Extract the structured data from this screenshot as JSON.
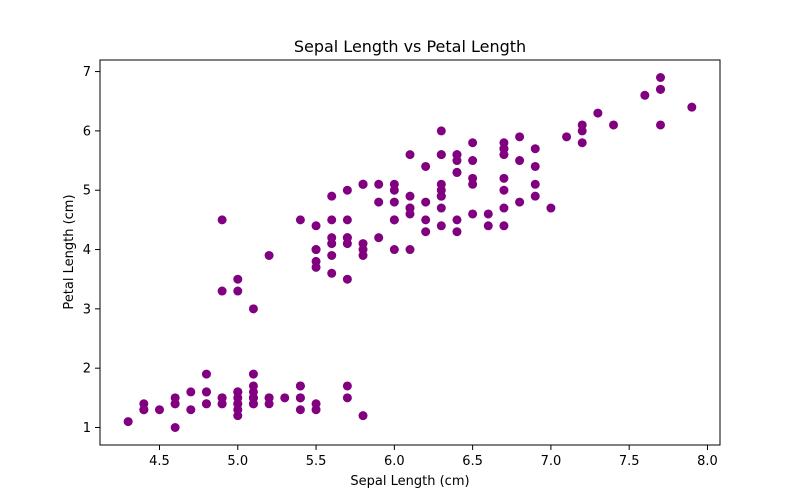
{
  "chart_data": {
    "type": "scatter",
    "title": "Sepal Length vs Petal Length",
    "xlabel": "Sepal Length (cm)",
    "ylabel": "Petal Length (cm)",
    "xlim": [
      4.12,
      8.08
    ],
    "ylim": [
      0.705,
      7.195
    ],
    "x_ticks": [
      4.5,
      5.0,
      5.5,
      6.0,
      6.5,
      7.0,
      7.5,
      8.0
    ],
    "x_tick_labels": [
      "4.5",
      "5.0",
      "5.5",
      "6.0",
      "6.5",
      "7.0",
      "7.5",
      "8.0"
    ],
    "y_ticks": [
      1,
      2,
      3,
      4,
      5,
      6,
      7
    ],
    "y_tick_labels": [
      "1",
      "2",
      "3",
      "4",
      "5",
      "6",
      "7"
    ],
    "grid": false,
    "marker_color": "#800080",
    "points": [
      [
        5.1,
        1.4
      ],
      [
        4.9,
        1.4
      ],
      [
        4.7,
        1.3
      ],
      [
        4.6,
        1.5
      ],
      [
        5.0,
        1.4
      ],
      [
        5.4,
        1.7
      ],
      [
        4.6,
        1.4
      ],
      [
        5.0,
        1.5
      ],
      [
        4.4,
        1.4
      ],
      [
        4.9,
        1.5
      ],
      [
        5.4,
        1.5
      ],
      [
        4.8,
        1.6
      ],
      [
        4.8,
        1.4
      ],
      [
        4.3,
        1.1
      ],
      [
        5.8,
        1.2
      ],
      [
        5.7,
        1.5
      ],
      [
        5.4,
        1.3
      ],
      [
        5.1,
        1.4
      ],
      [
        5.7,
        1.7
      ],
      [
        5.1,
        1.5
      ],
      [
        5.4,
        1.7
      ],
      [
        5.1,
        1.5
      ],
      [
        4.6,
        1.0
      ],
      [
        5.1,
        1.7
      ],
      [
        4.8,
        1.9
      ],
      [
        5.0,
        1.6
      ],
      [
        5.0,
        1.6
      ],
      [
        5.2,
        1.5
      ],
      [
        5.2,
        1.4
      ],
      [
        4.7,
        1.6
      ],
      [
        4.8,
        1.6
      ],
      [
        5.4,
        1.5
      ],
      [
        5.2,
        1.5
      ],
      [
        5.5,
        1.4
      ],
      [
        4.9,
        1.5
      ],
      [
        5.0,
        1.2
      ],
      [
        5.5,
        1.3
      ],
      [
        4.9,
        1.4
      ],
      [
        4.4,
        1.3
      ],
      [
        5.1,
        1.5
      ],
      [
        5.0,
        1.3
      ],
      [
        4.5,
        1.3
      ],
      [
        4.4,
        1.3
      ],
      [
        5.0,
        1.6
      ],
      [
        5.1,
        1.9
      ],
      [
        4.8,
        1.4
      ],
      [
        5.1,
        1.6
      ],
      [
        4.6,
        1.4
      ],
      [
        5.3,
        1.5
      ],
      [
        5.0,
        1.4
      ],
      [
        7.0,
        4.7
      ],
      [
        6.4,
        4.5
      ],
      [
        6.9,
        4.9
      ],
      [
        5.5,
        4.0
      ],
      [
        6.5,
        4.6
      ],
      [
        5.7,
        4.5
      ],
      [
        6.3,
        4.7
      ],
      [
        4.9,
        3.3
      ],
      [
        6.6,
        4.6
      ],
      [
        5.2,
        3.9
      ],
      [
        5.0,
        3.5
      ],
      [
        5.9,
        4.2
      ],
      [
        6.0,
        4.0
      ],
      [
        6.1,
        4.7
      ],
      [
        5.6,
        3.6
      ],
      [
        6.7,
        4.4
      ],
      [
        5.6,
        4.5
      ],
      [
        5.8,
        4.1
      ],
      [
        6.2,
        4.5
      ],
      [
        5.6,
        3.9
      ],
      [
        5.9,
        4.8
      ],
      [
        6.1,
        4.0
      ],
      [
        6.3,
        4.9
      ],
      [
        6.1,
        4.7
      ],
      [
        6.4,
        4.3
      ],
      [
        6.6,
        4.4
      ],
      [
        6.8,
        4.8
      ],
      [
        6.7,
        5.0
      ],
      [
        6.0,
        4.5
      ],
      [
        5.7,
        3.5
      ],
      [
        5.5,
        3.8
      ],
      [
        5.5,
        3.7
      ],
      [
        5.8,
        3.9
      ],
      [
        6.0,
        5.1
      ],
      [
        5.4,
        4.5
      ],
      [
        6.0,
        4.5
      ],
      [
        6.7,
        4.7
      ],
      [
        6.3,
        4.4
      ],
      [
        5.6,
        4.1
      ],
      [
        5.5,
        4.0
      ],
      [
        5.5,
        4.4
      ],
      [
        6.1,
        4.6
      ],
      [
        5.8,
        4.0
      ],
      [
        5.0,
        3.3
      ],
      [
        5.6,
        4.2
      ],
      [
        5.7,
        4.2
      ],
      [
        5.7,
        4.2
      ],
      [
        6.2,
        4.3
      ],
      [
        5.1,
        3.0
      ],
      [
        5.7,
        4.1
      ],
      [
        6.3,
        6.0
      ],
      [
        5.8,
        5.1
      ],
      [
        7.1,
        5.9
      ],
      [
        6.3,
        5.6
      ],
      [
        6.5,
        5.8
      ],
      [
        7.6,
        6.6
      ],
      [
        4.9,
        4.5
      ],
      [
        7.3,
        6.3
      ],
      [
        6.7,
        5.8
      ],
      [
        7.2,
        6.1
      ],
      [
        6.5,
        5.1
      ],
      [
        6.4,
        5.3
      ],
      [
        6.8,
        5.5
      ],
      [
        5.7,
        5.0
      ],
      [
        5.8,
        5.1
      ],
      [
        6.4,
        5.3
      ],
      [
        6.5,
        5.5
      ],
      [
        7.7,
        6.7
      ],
      [
        7.7,
        6.9
      ],
      [
        6.0,
        5.0
      ],
      [
        6.9,
        5.7
      ],
      [
        5.6,
        4.9
      ],
      [
        7.7,
        6.7
      ],
      [
        6.3,
        4.9
      ],
      [
        6.7,
        5.7
      ],
      [
        7.2,
        6.0
      ],
      [
        6.2,
        4.8
      ],
      [
        6.1,
        4.9
      ],
      [
        6.4,
        5.6
      ],
      [
        7.2,
        5.8
      ],
      [
        7.4,
        6.1
      ],
      [
        7.9,
        6.4
      ],
      [
        6.4,
        5.6
      ],
      [
        6.3,
        5.1
      ],
      [
        6.1,
        5.6
      ],
      [
        7.7,
        6.1
      ],
      [
        6.3,
        5.6
      ],
      [
        6.4,
        5.5
      ],
      [
        6.0,
        4.8
      ],
      [
        6.9,
        5.4
      ],
      [
        6.7,
        5.6
      ],
      [
        6.9,
        5.1
      ],
      [
        5.8,
        5.1
      ],
      [
        6.8,
        5.9
      ],
      [
        6.7,
        5.7
      ],
      [
        6.7,
        5.2
      ],
      [
        6.3,
        5.0
      ],
      [
        6.5,
        5.2
      ],
      [
        6.2,
        5.4
      ],
      [
        5.9,
        5.1
      ]
    ]
  }
}
